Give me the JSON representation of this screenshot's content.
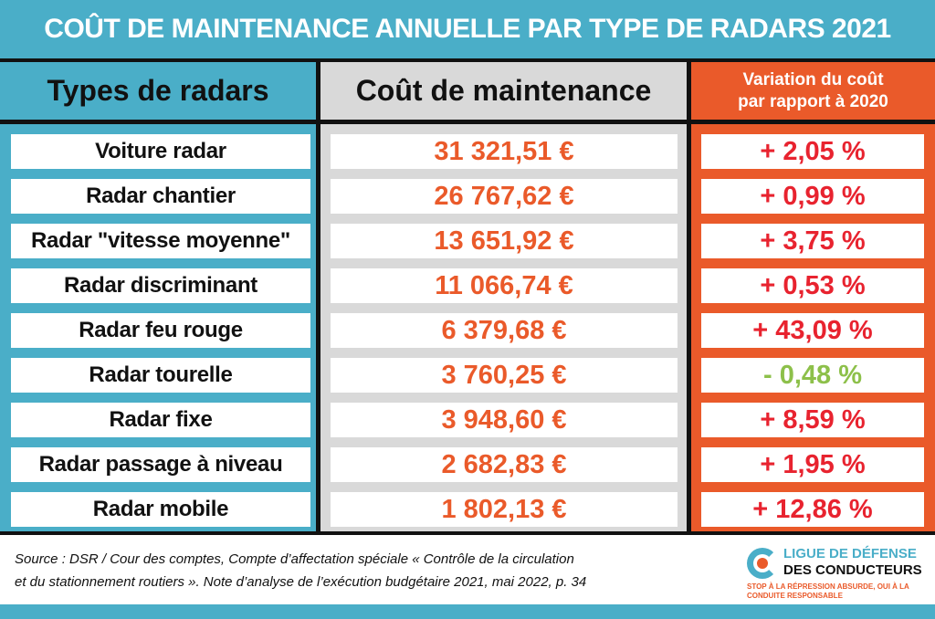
{
  "title": "COÛT DE MAINTENANCE ANNUELLE PAR TYPE DE RADARS 2021",
  "colors": {
    "teal": "#4aaec8",
    "orange": "#ea5a2a",
    "cost_text": "#ea5a2a",
    "positive": "#e8232f",
    "negative": "#8dc04a",
    "gray": "#d9d9d9"
  },
  "chart_data": {
    "type": "table",
    "title": "COÛT DE MAINTENANCE ANNUELLE PAR TYPE DE RADARS 2021",
    "columns": [
      "Types de radars",
      "Coût de maintenance",
      "Variation du coût par rapport à 2020"
    ],
    "rows": [
      {
        "type": "Voiture radar",
        "cost": "31 321,51 €",
        "variation": "+ 2,05 %",
        "sign": "pos"
      },
      {
        "type": "Radar chantier",
        "cost": "26 767,62 €",
        "variation": "+ 0,99 %",
        "sign": "pos"
      },
      {
        "type": "Radar \"vitesse moyenne\"",
        "cost": "13 651,92 €",
        "variation": "+ 3,75 %",
        "sign": "pos"
      },
      {
        "type": "Radar discriminant",
        "cost": "11 066,74 €",
        "variation": "+ 0,53 %",
        "sign": "pos"
      },
      {
        "type": "Radar feu rouge",
        "cost": "6 379,68 €",
        "variation": "+ 43,09 %",
        "sign": "pos"
      },
      {
        "type": "Radar tourelle",
        "cost": "3 760,25 €",
        "variation": "- 0,48 %",
        "sign": "neg"
      },
      {
        "type": "Radar fixe",
        "cost": "3 948,60 €",
        "variation": "+ 8,59 %",
        "sign": "pos"
      },
      {
        "type": "Radar passage à niveau",
        "cost": "2 682,83 €",
        "variation": "+ 1,95 %",
        "sign": "pos"
      },
      {
        "type": "Radar mobile",
        "cost": "1 802,13 €",
        "variation": "+ 12,86 %",
        "sign": "pos"
      }
    ]
  },
  "headers": {
    "type": "Types de radars",
    "cost": "Coût de maintenance",
    "variation_line1": "Variation du coût",
    "variation_line2": "par rapport à 2020"
  },
  "source": {
    "line1": "Source : DSR / Cour des comptes, Compte d’affectation spéciale « Contrôle de la circulation",
    "line2": "et du stationnement routiers ». Note d’analyse de l’exécution budgétaire 2021, mai 2022, p. 34"
  },
  "logo": {
    "line1": "LIGUE DE DÉFENSE",
    "line2": "DES CONDUCTEURS",
    "tagline": "STOP À LA RÉPRESSION ABSURDE, OUI À LA CONDUITE RESPONSABLE"
  }
}
